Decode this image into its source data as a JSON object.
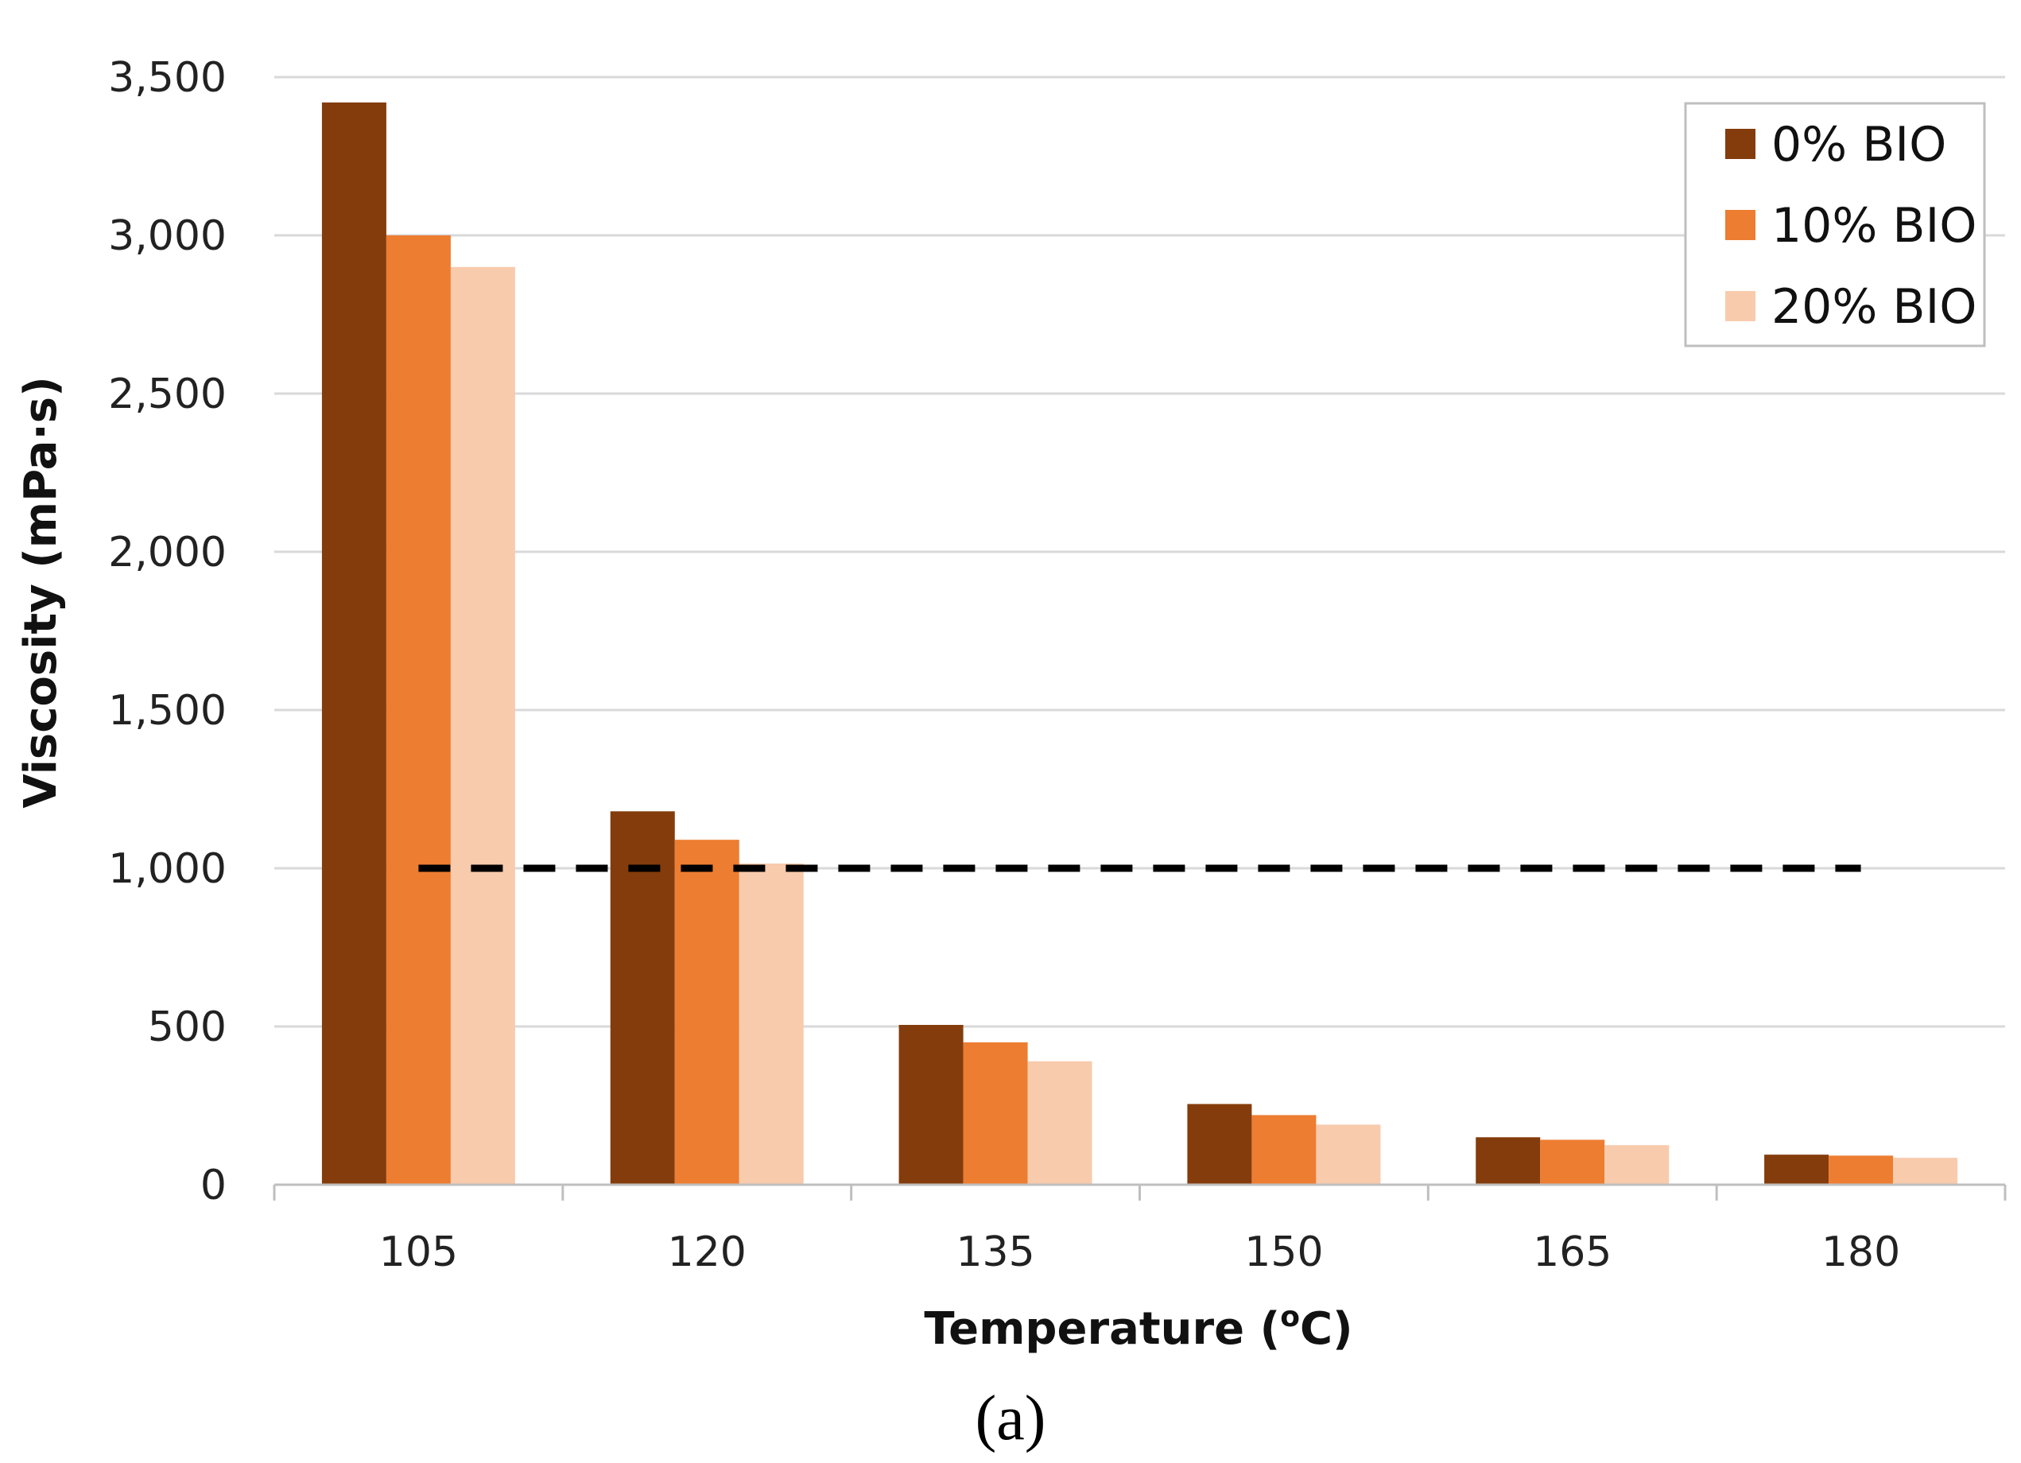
{
  "chart_data": {
    "type": "bar",
    "title": "",
    "xlabel": "Temperature (",
    "xlabel_sup": "o",
    "xlabel_suffix": "C)",
    "ylabel": "Viscosity (mPa·s)",
    "categories": [
      "105",
      "120",
      "135",
      "150",
      "165",
      "180"
    ],
    "series": [
      {
        "name": "0% BIO",
        "color": "#843C0C",
        "values": [
          3420,
          1180,
          505,
          255,
          150,
          95
        ]
      },
      {
        "name": "10% BIO",
        "color": "#ED7D31",
        "values": [
          3000,
          1090,
          450,
          220,
          142,
          92
        ]
      },
      {
        "name": "20% BIO",
        "color": "#F8CBAD",
        "values": [
          2900,
          1015,
          390,
          190,
          125,
          85
        ]
      }
    ],
    "ylim": [
      0,
      3500
    ],
    "yticks": [
      0,
      500,
      1000,
      1500,
      2000,
      2500,
      3000,
      3500
    ],
    "ytick_labels": [
      "0",
      "500",
      "1,000",
      "1,500",
      "2,000",
      "2,500",
      "3,000",
      "3,500"
    ],
    "reference_line": {
      "y": 1000,
      "x_start_category": "105",
      "x_end_category": "180",
      "style": "dashed",
      "color": "#000000"
    },
    "grid": true,
    "legend_position": "top-right",
    "panel_label": "(a)"
  }
}
